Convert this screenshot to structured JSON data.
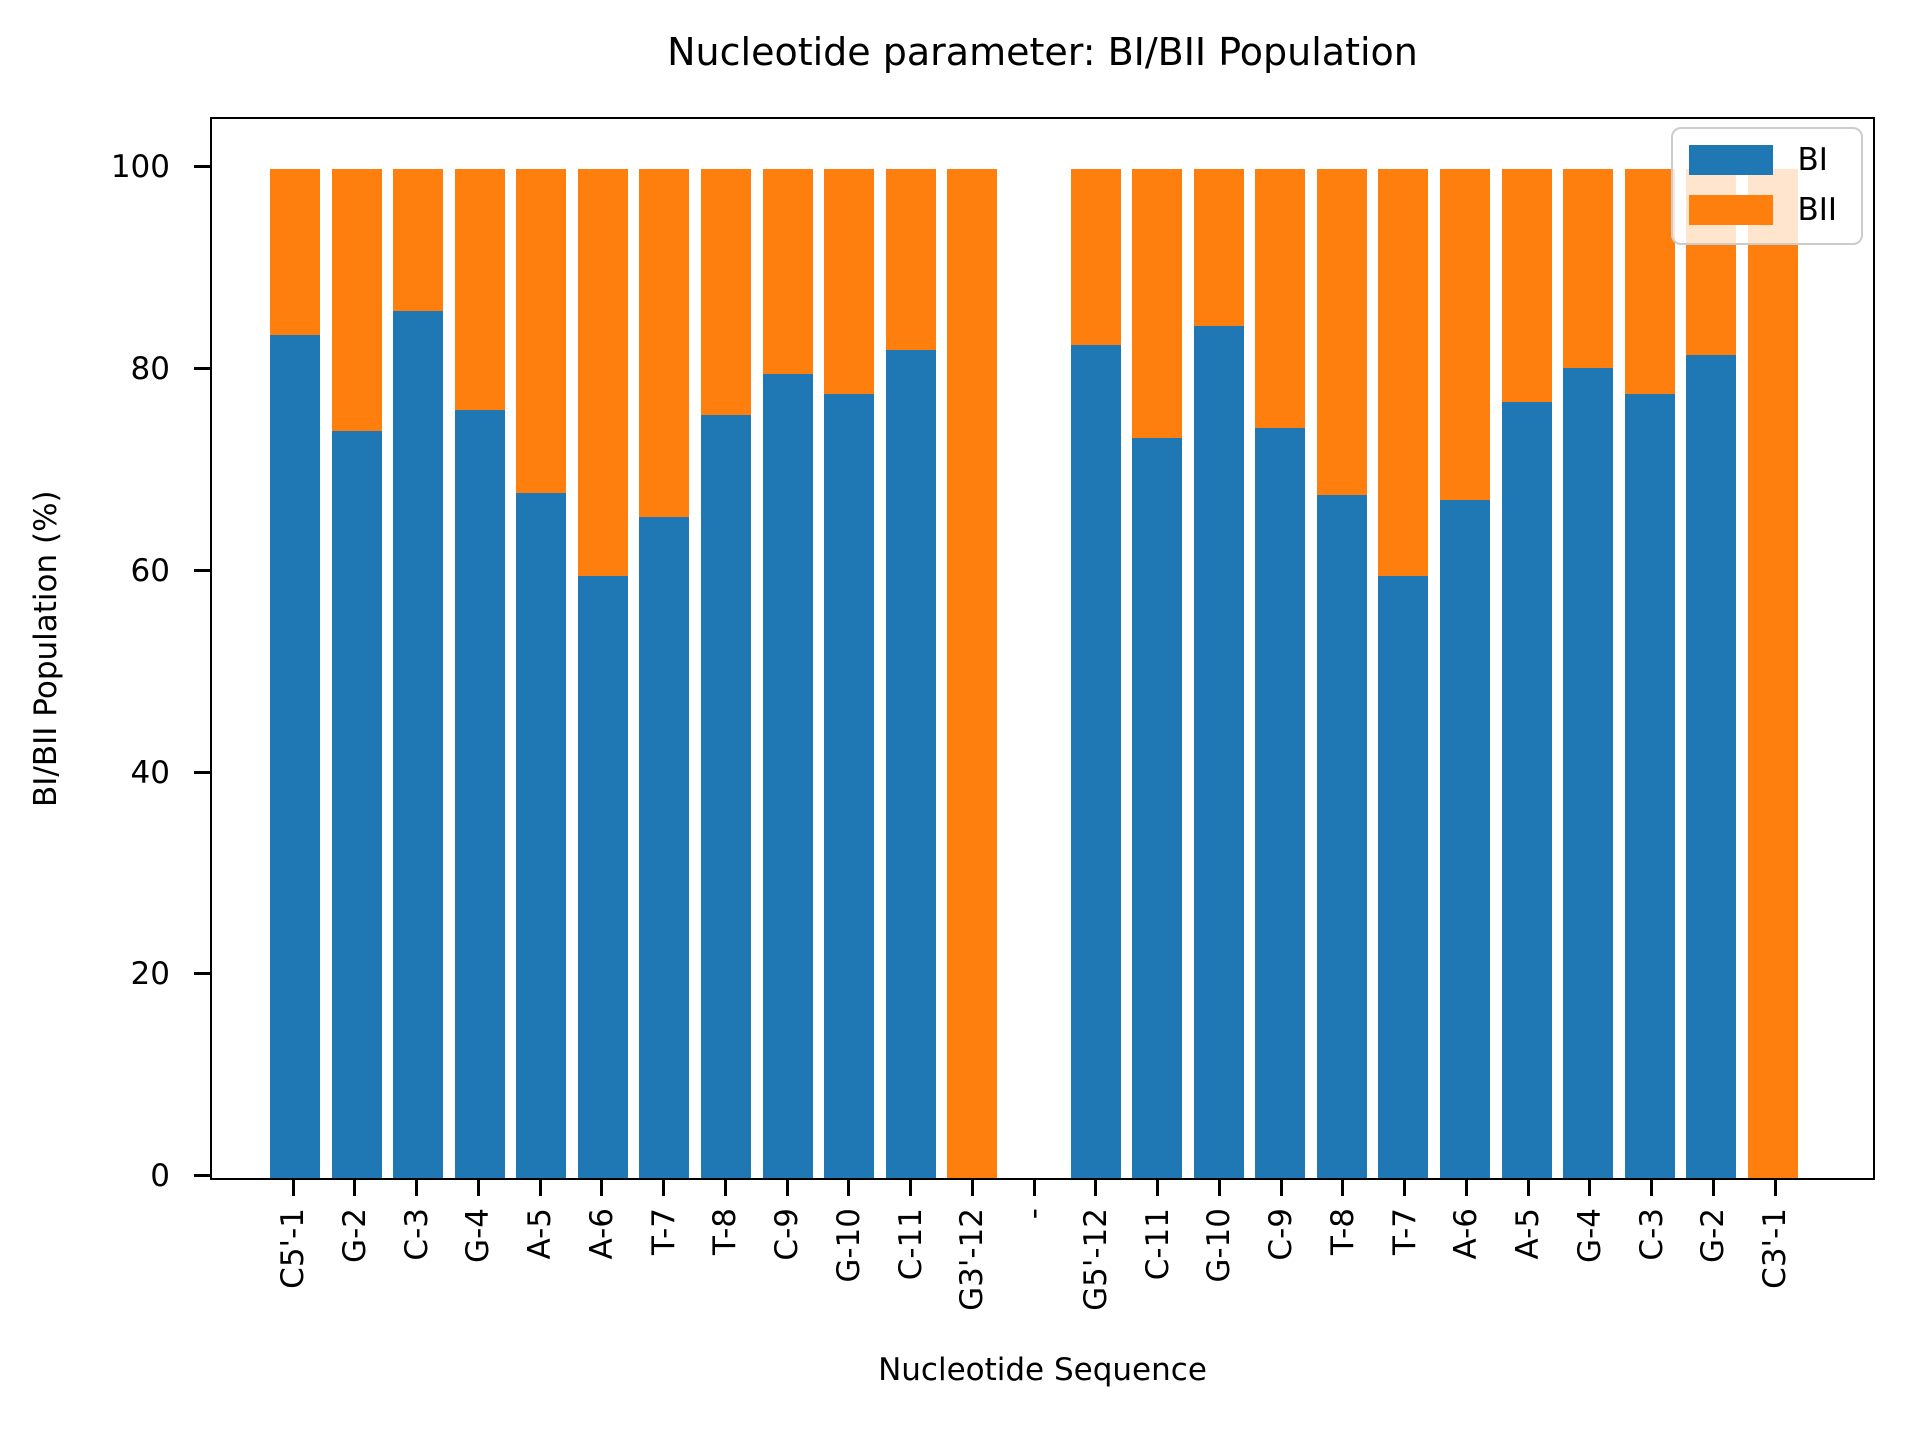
{
  "chart_data": {
    "type": "bar",
    "stacked": true,
    "title": "Nucleotide parameter: BI/BII Population",
    "xlabel": "Nucleotide Sequence",
    "ylabel": "BI/BII Population (%)",
    "ylim": [
      0,
      105
    ],
    "ymax": 105,
    "yticks": [
      0,
      20,
      40,
      60,
      80,
      100
    ],
    "grid": false,
    "legend_position": "upper right",
    "categories": [
      "C5'-1",
      "G-2",
      "C-3",
      "G-4",
      "A-5",
      "A-6",
      "T-7",
      "T-8",
      "C-9",
      "G-10",
      "C-11",
      "G3'-12",
      "-",
      "G5'-12",
      "C-11",
      "G-10",
      "C-9",
      "T-8",
      "T-7",
      "A-6",
      "A-5",
      "G-4",
      "C-3",
      "G-2",
      "C3'-1"
    ],
    "series": [
      {
        "name": "BI",
        "color": "#1f77b4",
        "values": [
          83.6,
          74.1,
          86.0,
          76.1,
          67.9,
          59.7,
          65.5,
          75.7,
          79.7,
          77.7,
          82.1,
          0.0,
          null,
          82.6,
          73.4,
          84.5,
          74.4,
          67.7,
          59.7,
          67.2,
          76.9,
          80.3,
          77.7,
          81.6,
          0.0
        ]
      },
      {
        "name": "BII",
        "color": "#ff7f0e",
        "values": [
          16.4,
          25.9,
          14.0,
          23.9,
          32.1,
          40.3,
          34.5,
          24.3,
          20.3,
          22.3,
          17.9,
          100.0,
          null,
          17.4,
          26.6,
          15.5,
          25.6,
          32.3,
          40.3,
          32.8,
          23.1,
          19.7,
          22.3,
          18.4,
          100.0
        ]
      }
    ]
  }
}
